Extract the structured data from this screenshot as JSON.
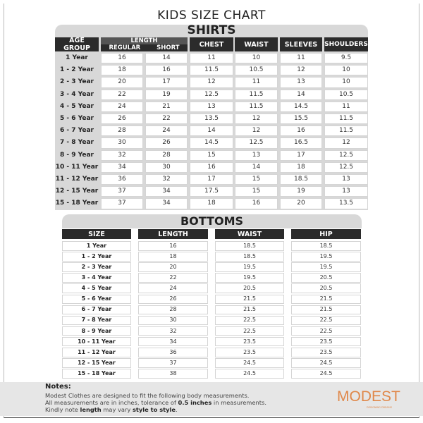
{
  "title": "KIDS SIZE CHART",
  "shirts": {
    "title": "SHIRTS",
    "headers": {
      "age": "AGE GROUP",
      "length": "LENGTH",
      "regular": "REGULAR",
      "short": "SHORT",
      "chest": "CHEST",
      "waist": "WAIST",
      "sleeves": "SLEEVES",
      "shoulders": "SHOULDERS"
    },
    "rows": [
      [
        "1 Year",
        "16",
        "14",
        "11",
        "10",
        "11",
        "9.5"
      ],
      [
        "1 - 2 Year",
        "18",
        "16",
        "11.5",
        "10.5",
        "12",
        "10"
      ],
      [
        "2 - 3 Year",
        "20",
        "17",
        "12",
        "11",
        "13",
        "10"
      ],
      [
        "3 - 4 Year",
        "22",
        "19",
        "12.5",
        "11.5",
        "14",
        "10.5"
      ],
      [
        "4 - 5 Year",
        "24",
        "21",
        "13",
        "11.5",
        "14.5",
        "11"
      ],
      [
        "5 - 6 Year",
        "26",
        "22",
        "13.5",
        "12",
        "15.5",
        "11.5"
      ],
      [
        "6 - 7 Year",
        "28",
        "24",
        "14",
        "12",
        "16",
        "11.5"
      ],
      [
        "7 - 8 Year",
        "30",
        "26",
        "14.5",
        "12.5",
        "16.5",
        "12"
      ],
      [
        "8 - 9 Year",
        "32",
        "28",
        "15",
        "13",
        "17",
        "12.5"
      ],
      [
        "10 - 11 Year",
        "34",
        "30",
        "16",
        "14",
        "18",
        "12.5"
      ],
      [
        "11 - 12 Year",
        "36",
        "32",
        "17",
        "15",
        "18.5",
        "13"
      ],
      [
        "12 - 15 Year",
        "37",
        "34",
        "17.5",
        "15",
        "19",
        "13"
      ],
      [
        "15 - 18 Year",
        "37",
        "34",
        "18",
        "16",
        "20",
        "13.5"
      ]
    ]
  },
  "bottoms": {
    "title": "BOTTOMS",
    "headers": [
      "SIZE",
      "LENGTH",
      "WAIST",
      "HIP"
    ],
    "rows": [
      [
        "1 Year",
        "16",
        "18.5",
        "18.5"
      ],
      [
        "1 - 2 Year",
        "18",
        "18.5",
        "19.5"
      ],
      [
        "2 - 3 Year",
        "20",
        "19.5",
        "19.5"
      ],
      [
        "3 - 4 Year",
        "22",
        "19.5",
        "20.5"
      ],
      [
        "4 - 5 Year",
        "24",
        "20.5",
        "20.5"
      ],
      [
        "5 - 6 Year",
        "26",
        "21.5",
        "21.5"
      ],
      [
        "6 - 7 Year",
        "28",
        "21.5",
        "21.5"
      ],
      [
        "7 - 8 Year",
        "30",
        "22.5",
        "22.5"
      ],
      [
        "8 - 9 Year",
        "32",
        "22.5",
        "22.5"
      ],
      [
        "10 - 11 Year",
        "34",
        "23.5",
        "23.5"
      ],
      [
        "11 - 12 Year",
        "36",
        "23.5",
        "23.5"
      ],
      [
        "12 - 15 Year",
        "37",
        "24.5",
        "24.5"
      ],
      [
        "15 - 18 Year",
        "38",
        "24.5",
        "24.5"
      ]
    ]
  },
  "notes": {
    "heading": "Notes:",
    "line1": "Modest Clothes are designed to fit the following body measurements.",
    "line2_a": "All measurements are in inches, tolerance of ",
    "line2_b": "0.5 inches",
    "line2_c": " in measurements.",
    "line3_a": "Kindly note ",
    "line3_b": "length",
    "line3_c": " may vary ",
    "line3_d": "style to style",
    "line3_e": "."
  },
  "logo": {
    "text": "MODEST",
    "subtitle": "DESIGNING DREAMS",
    "color": "#e0884a"
  },
  "colors": {
    "header_dark": "#2b2b2b",
    "panel_gray": "#d8d8d8",
    "notes_bg": "#e6e6e6"
  }
}
